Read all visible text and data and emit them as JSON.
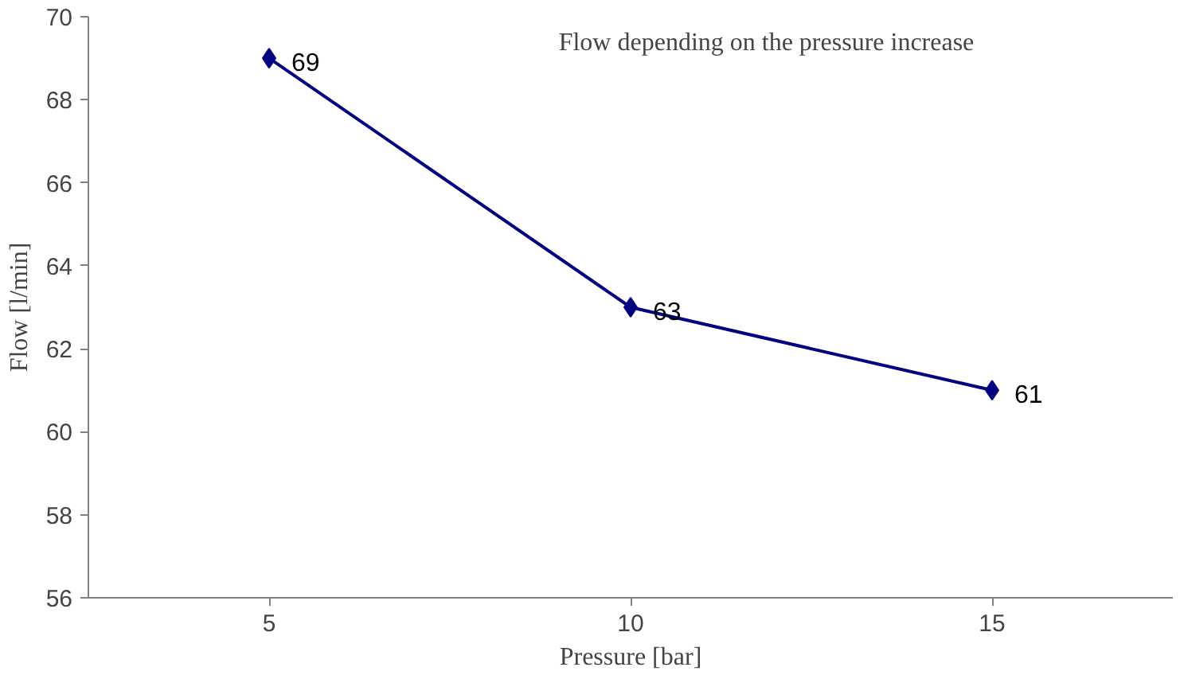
{
  "chart_data": {
    "type": "line",
    "title": "Flow depending on the pressure increase",
    "xlabel": "Pressure [bar]",
    "ylabel": "Flow [l/min]",
    "categories": [
      "5",
      "10",
      "15"
    ],
    "series": [
      {
        "color": "#000080",
        "values": [
          69,
          63,
          61
        ]
      }
    ],
    "ylim": [
      56,
      70
    ],
    "yticks": [
      56,
      58,
      60,
      62,
      64,
      66,
      68,
      70
    ],
    "data_labels": true,
    "marker": "diamond",
    "line_style": "solid",
    "grid": false
  }
}
